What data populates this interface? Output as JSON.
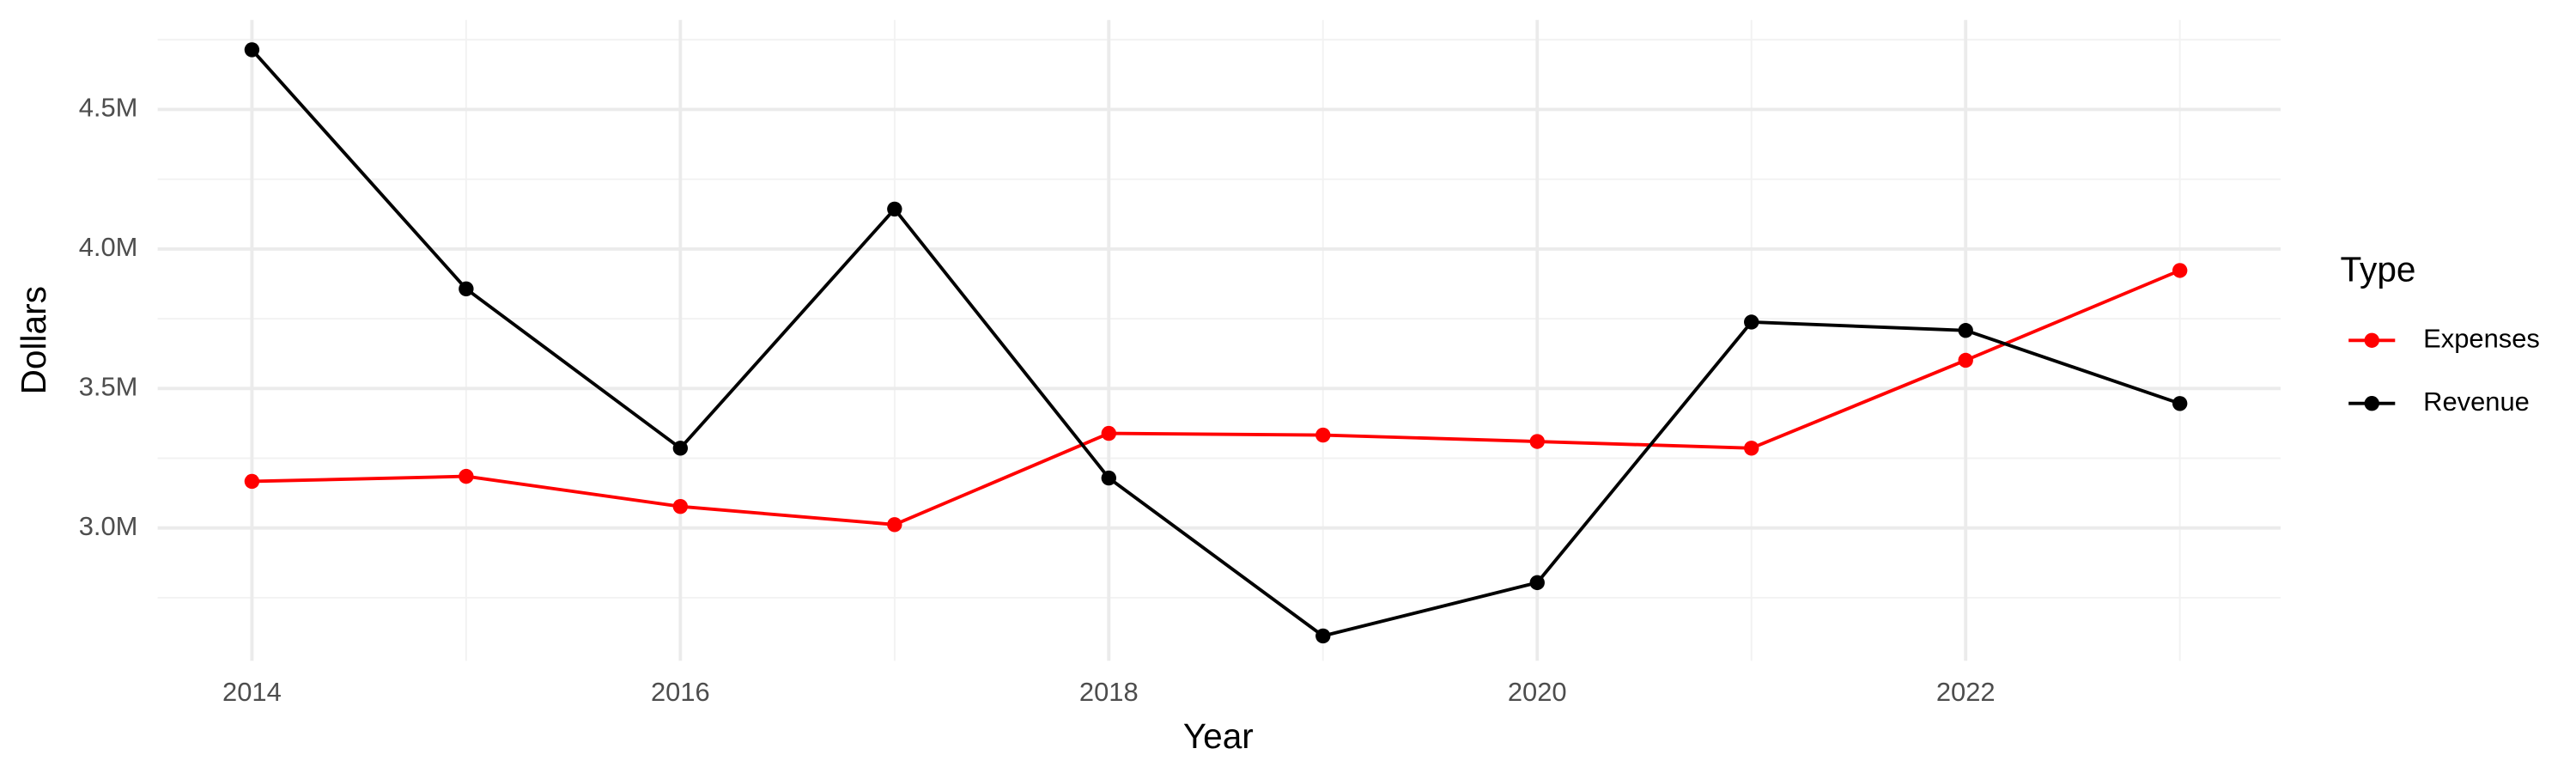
{
  "chart_data": {
    "type": "line",
    "x_label": "Year",
    "y_label": "Dollars",
    "legend_title": "Type",
    "legend_position": "right",
    "grid": true,
    "x": [
      2014,
      2015,
      2016,
      2017,
      2018,
      2019,
      2020,
      2021,
      2022,
      2023
    ],
    "series": [
      {
        "name": "Expenses",
        "color": "#ff0000",
        "values": [
          3167000,
          3185000,
          3077000,
          3012000,
          3339000,
          3333000,
          3310000,
          3286000,
          3601000,
          3923000
        ]
      },
      {
        "name": "Revenue",
        "color": "#000000",
        "values": [
          4714000,
          3857000,
          3286000,
          4143000,
          3179000,
          2613000,
          2804000,
          3738000,
          3708000,
          3446000
        ]
      }
    ],
    "xlim": [
      2013.56,
      2023.47
    ],
    "xticks": [
      2014,
      2016,
      2018,
      2020,
      2022
    ],
    "ylim": [
      2524000,
      4821000
    ],
    "yticks": [
      {
        "value": 3000000,
        "label": "3.0M"
      },
      {
        "value": 3500000,
        "label": "3.5M"
      },
      {
        "value": 4000000,
        "label": "4.0M"
      },
      {
        "value": 4500000,
        "label": "4.5M"
      }
    ]
  }
}
